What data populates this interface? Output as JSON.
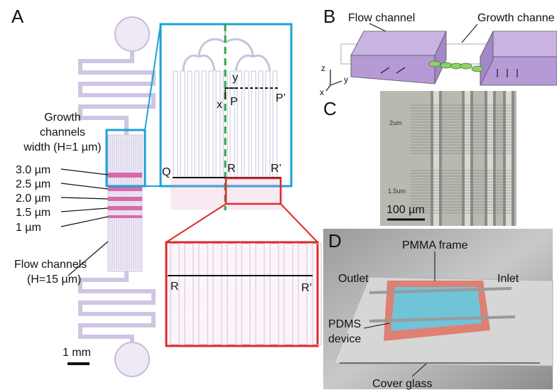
{
  "panels": {
    "A": {
      "label": "A",
      "growth_channels_label": [
        "Growth",
        "channels",
        "width (H=1 µm)"
      ],
      "widths": [
        "3.0 µm",
        "2.5 µm",
        "2.0 µm",
        "1.5 µm",
        "1 µm"
      ],
      "flow_channels_label": [
        "Flow channels",
        "(H=15 µm)"
      ],
      "scale_bar": "1 mm",
      "inset_labels": {
        "Q": "Q",
        "R": "R",
        "R_prime": "R’",
        "P": "P",
        "P_prime": "P’",
        "x": "x",
        "y": "y"
      },
      "zoom_labels": {
        "R": "R",
        "R_prime": "R’"
      }
    },
    "B": {
      "label": "B",
      "flow_channel": "Flow channel",
      "growth_channel": "Growth channe",
      "axes": {
        "z": "z",
        "y": "y",
        "x": "x"
      }
    },
    "C": {
      "label": "C",
      "annotations": [
        "2um",
        "1.5um"
      ],
      "scale_bar": "100 µm"
    },
    "D": {
      "label": "D",
      "pmma_frame": "PMMA frame",
      "outlet": "Outlet",
      "inlet": "Inlet",
      "pdms_device": [
        "PDMS",
        "device"
      ],
      "cover_glass": "Cover glass"
    }
  }
}
